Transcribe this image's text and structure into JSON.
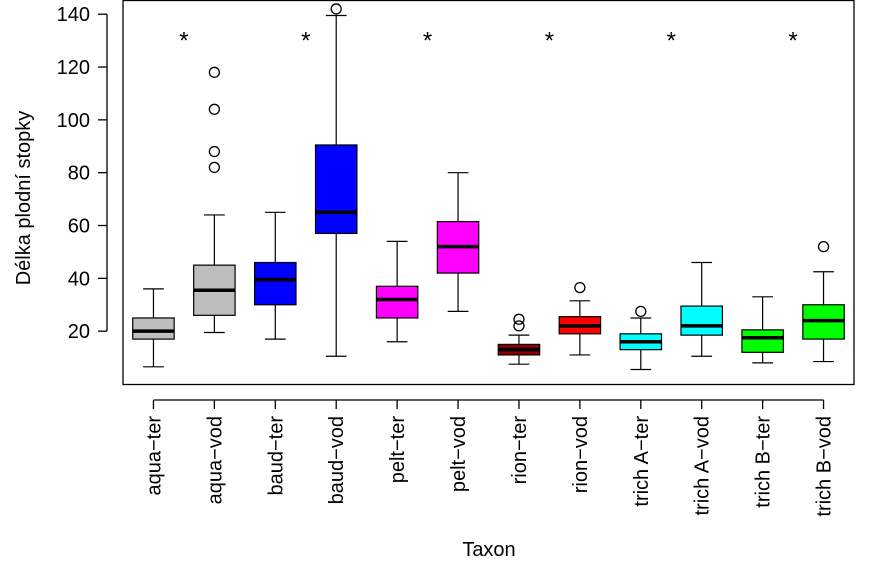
{
  "chart_data": {
    "type": "boxplot",
    "xlabel": "Taxon",
    "ylabel": "Délka plodní stopky",
    "ylim": [
      0,
      145
    ],
    "yticks": [
      20,
      40,
      60,
      80,
      100,
      120,
      140
    ],
    "grid": false,
    "categories": [
      "aqua−ter",
      "aqua−vod",
      "baud−ter",
      "baud−vod",
      "pelt−ter",
      "pelt−vod",
      "rion−ter",
      "rion−vod",
      "trich A−ter",
      "trich A−vod",
      "trich B−ter",
      "trich B−vod"
    ],
    "colors": [
      "#BEBEBE",
      "#BEBEBE",
      "#0000FF",
      "#0000FF",
      "#FF00FF",
      "#FF00FF",
      "#8B0000",
      "#FF0000",
      "#00FFFF",
      "#00FFFF",
      "#00FF00",
      "#00FF00"
    ],
    "boxes": [
      {
        "whisker_low": 6.5,
        "q1": 17,
        "median": 20,
        "q3": 25,
        "whisker_high": 36,
        "outliers": []
      },
      {
        "whisker_low": 19.5,
        "q1": 26,
        "median": 35.5,
        "q3": 45,
        "whisker_high": 64,
        "outliers": [
          82,
          88,
          104,
          118
        ]
      },
      {
        "whisker_low": 17,
        "q1": 30,
        "median": 39.5,
        "q3": 46,
        "whisker_high": 65,
        "outliers": []
      },
      {
        "whisker_low": 10.5,
        "q1": 57,
        "median": 65,
        "q3": 90.5,
        "whisker_high": 139.5,
        "outliers": [
          142
        ]
      },
      {
        "whisker_low": 16,
        "q1": 25,
        "median": 32,
        "q3": 37,
        "whisker_high": 54,
        "outliers": []
      },
      {
        "whisker_low": 27.5,
        "q1": 42,
        "median": 52,
        "q3": 61.5,
        "whisker_high": 80,
        "outliers": []
      },
      {
        "whisker_low": 7.5,
        "q1": 11,
        "median": 13,
        "q3": 15,
        "whisker_high": 18.5,
        "outliers": [
          22,
          24.5
        ]
      },
      {
        "whisker_low": 11,
        "q1": 19,
        "median": 22,
        "q3": 25.5,
        "whisker_high": 31.5,
        "outliers": [
          36.5
        ]
      },
      {
        "whisker_low": 5.5,
        "q1": 13,
        "median": 16,
        "q3": 19,
        "whisker_high": 25,
        "outliers": [
          27.5
        ]
      },
      {
        "whisker_low": 10.5,
        "q1": 18.5,
        "median": 22,
        "q3": 29.5,
        "whisker_high": 46,
        "outliers": []
      },
      {
        "whisker_low": 8,
        "q1": 12,
        "median": 17.5,
        "q3": 20.5,
        "whisker_high": 33,
        "outliers": []
      },
      {
        "whisker_low": 8.5,
        "q1": 17,
        "median": 24,
        "q3": 30,
        "whisker_high": 42.5,
        "outliers": [
          52
        ]
      }
    ],
    "annotations": [
      {
        "text": "*",
        "between": [
          "aqua−ter",
          "aqua−vod"
        ],
        "y": 130
      },
      {
        "text": "*",
        "between": [
          "baud−ter",
          "baud−vod"
        ],
        "y": 130
      },
      {
        "text": "*",
        "between": [
          "pelt−ter",
          "pelt−vod"
        ],
        "y": 130
      },
      {
        "text": "*",
        "between": [
          "rion−ter",
          "rion−vod"
        ],
        "y": 130
      },
      {
        "text": "*",
        "between": [
          "trich A−ter",
          "trich A−vod"
        ],
        "y": 130
      },
      {
        "text": "*",
        "between": [
          "trich B−ter",
          "trich B−vod"
        ],
        "y": 130
      }
    ]
  }
}
